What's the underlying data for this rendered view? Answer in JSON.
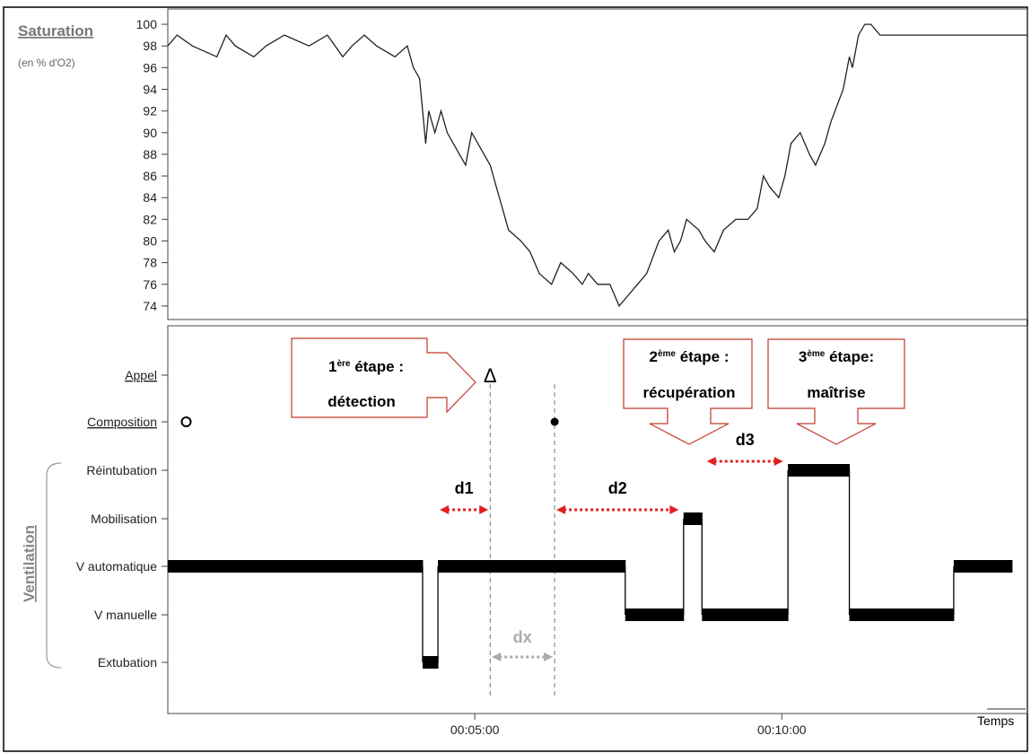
{
  "chart_data": [
    {
      "type": "line",
      "title": "Saturation",
      "subtitle": "(en % d'O2)",
      "ylim": [
        73,
        101
      ],
      "yticks": [
        74,
        76,
        78,
        80,
        82,
        84,
        86,
        88,
        90,
        92,
        94,
        96,
        98,
        100
      ],
      "x_unit": "minutes",
      "xlim": [
        0,
        14
      ],
      "series": [
        {
          "x": [
            0,
            0.15,
            0.4,
            0.8,
            0.95,
            1.1,
            1.4,
            1.6,
            1.9,
            2.3,
            2.6,
            2.85,
            3.0,
            3.2,
            3.4,
            3.7,
            3.9,
            4.0,
            4.1,
            4.15,
            4.2,
            4.25,
            4.35,
            4.45,
            4.55,
            4.65,
            4.75,
            4.85,
            4.95,
            5.05,
            5.25,
            5.4,
            5.55,
            5.75,
            5.9,
            6.05,
            6.25,
            6.4,
            6.6,
            6.75,
            6.85,
            7.0,
            7.1,
            7.2,
            7.35,
            7.65,
            7.8,
            8.0,
            8.15,
            8.25,
            8.35,
            8.45,
            8.65,
            8.75,
            8.9,
            9.05,
            9.25,
            9.45,
            9.6,
            9.7,
            9.8,
            9.95,
            10.05,
            10.15,
            10.3,
            10.45,
            10.55,
            10.7,
            10.8,
            11.0,
            11.1,
            11.15,
            11.25,
            11.35,
            11.45,
            11.6,
            11.75,
            11.9,
            12.0,
            12.2,
            12.5,
            12.8,
            13.0,
            13.4,
            14.0
          ],
          "y": [
            98,
            99,
            98,
            97,
            99,
            98,
            97,
            98,
            99,
            98,
            99,
            97,
            98,
            99,
            98,
            97,
            98,
            96,
            95,
            92,
            89,
            92,
            90,
            92,
            90,
            89,
            88,
            87,
            90,
            89,
            87,
            84,
            81,
            80,
            79,
            77,
            76,
            78,
            77,
            76,
            77,
            76,
            76,
            76,
            74,
            76,
            77,
            80,
            81,
            79,
            80,
            82,
            81,
            80,
            79,
            81,
            82,
            82,
            83,
            86,
            85,
            84,
            86,
            89,
            90,
            88,
            87,
            89,
            91,
            94,
            97,
            96,
            99,
            100,
            100,
            99,
            99,
            99,
            99,
            99,
            99,
            99,
            99,
            99,
            99
          ]
        }
      ]
    },
    {
      "type": "step",
      "ylabel": "Ventilation",
      "xlabel": "Temps",
      "x_unit": "minutes",
      "xlim": [
        0,
        14
      ],
      "xticks": [
        {
          "value": 5,
          "label": "00:05:00"
        },
        {
          "value": 10,
          "label": "00:10:00"
        }
      ],
      "categories": [
        "Appel",
        "Composition",
        "Réintubation",
        "Mobilisation",
        "V automatique",
        "V manuelle",
        "Extubation"
      ],
      "events": [
        {
          "category": "Appel",
          "x": 5.25,
          "symbol": "Δ"
        },
        {
          "category": "Composition",
          "x": 0.3,
          "marker": "open-circle"
        },
        {
          "category": "Composition",
          "x": 6.3,
          "marker": "filled-circle"
        }
      ],
      "ventilation_steps": [
        {
          "category": "V automatique",
          "x0": 0,
          "x1": 4.15
        },
        {
          "category": "Extubation",
          "x0": 4.15,
          "x1": 4.4
        },
        {
          "category": "V automatique",
          "x0": 4.4,
          "x1": 7.45
        },
        {
          "category": "V manuelle",
          "x0": 7.45,
          "x1": 8.4
        },
        {
          "category": "Mobilisation",
          "x0": 8.4,
          "x1": 8.7
        },
        {
          "category": "V manuelle",
          "x0": 8.7,
          "x1": 10.1
        },
        {
          "category": "Réintubation",
          "x0": 10.1,
          "x1": 11.1
        },
        {
          "category": "V manuelle",
          "x0": 11.1,
          "x1": 12.8
        },
        {
          "category": "V automatique",
          "x0": 12.8,
          "x1": 13.75
        }
      ],
      "vlines": [
        5.25,
        6.3
      ]
    }
  ],
  "annotations": {
    "stage1": {
      "sup_prefix": "1",
      "sup": "ère",
      "line1_rest": " étape :",
      "line2": "détection"
    },
    "stage2": {
      "sup_prefix": "2",
      "sup": "ème",
      "line1_rest": " étape :",
      "line2": "récupération"
    },
    "stage3": {
      "sup_prefix": "3",
      "sup": "ème",
      "line1_rest": " étape:",
      "line2": "maîtrise"
    },
    "d1": {
      "label": "d1",
      "x0": 4.4,
      "x1": 5.25,
      "category": "Mobilisation"
    },
    "d2": {
      "label": "d2",
      "x0": 6.3,
      "x1": 8.35,
      "category": "Mobilisation"
    },
    "d3": {
      "label": "d3",
      "x0": 8.75,
      "x1": 10.05,
      "category": "Réintubation"
    },
    "dx": {
      "label": "dx",
      "x0": 5.25,
      "x1": 6.3,
      "category": "Extubation"
    }
  },
  "colors": {
    "line": "#222222",
    "step": "#000000",
    "arrow_red": "#e02020",
    "box_red": "#c0392b",
    "grey": "#aaaaaa"
  }
}
